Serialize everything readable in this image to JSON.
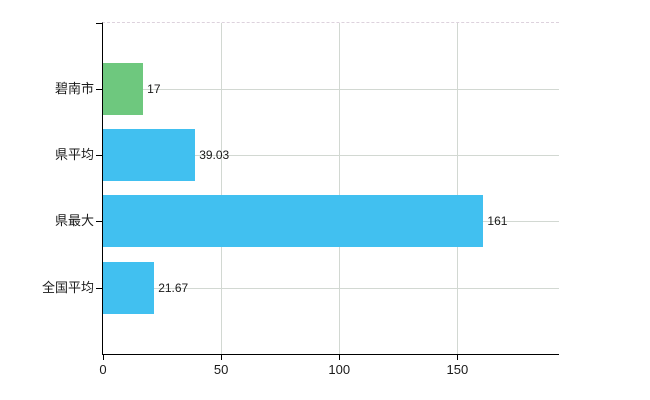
{
  "chart_data": {
    "type": "bar",
    "orientation": "horizontal",
    "title": "",
    "xlabel": "",
    "ylabel": "",
    "legend": "none",
    "grid": "vertical light gridlines at x ticks, horizontal light gridlines at category centers, dashed top border",
    "categories": [
      "碧南市",
      "県平均",
      "県最大",
      "全国平均"
    ],
    "values": [
      17,
      39.03,
      161,
      21.67
    ],
    "value_labels": [
      "17",
      "39.03",
      "161",
      "21.67"
    ],
    "bar_colors": [
      "#6ec87e",
      "#41c0f0",
      "#41c0f0",
      "#41c0f0"
    ],
    "x_ticks": [
      0,
      50,
      100,
      150
    ],
    "x_tick_labels": [
      "0",
      "50",
      "100",
      "150"
    ],
    "xlim": [
      0,
      193
    ]
  },
  "colors": {
    "hekinan_green": "#6ec87e",
    "reference_blue": "#41c0f0",
    "gridline": "#d2d8d2",
    "axis": "#000000",
    "text": "#1a1a1a",
    "background": "#ffffff"
  }
}
